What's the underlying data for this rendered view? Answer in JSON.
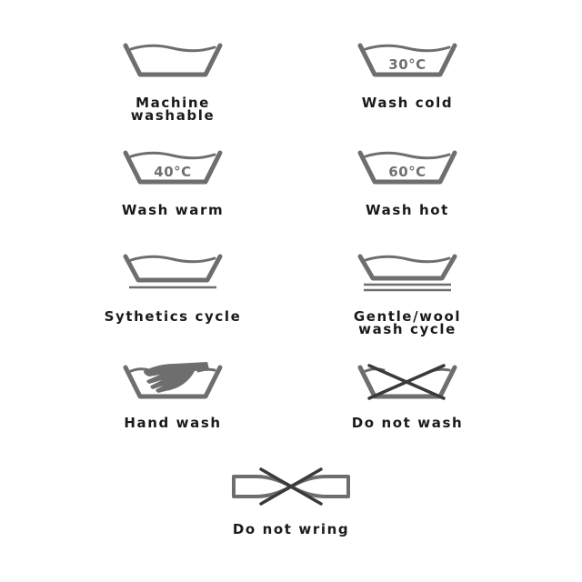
{
  "symbols": [
    {
      "id": "machine-washable",
      "label": "Machine\nwashable"
    },
    {
      "id": "wash-cold",
      "label": "Wash cold",
      "temperature": "30°C"
    },
    {
      "id": "wash-warm",
      "label": "Wash warm",
      "temperature": "40°C"
    },
    {
      "id": "wash-hot",
      "label": "Wash hot",
      "temperature": "60°C"
    },
    {
      "id": "synthetics-cycle",
      "label": "Sythetics cycle"
    },
    {
      "id": "gentle-wool",
      "label": "Gentle/wool\nwash cycle"
    },
    {
      "id": "hand-wash",
      "label": "Hand wash"
    },
    {
      "id": "do-not-wash",
      "label": "Do not wash"
    },
    {
      "id": "do-not-wring",
      "label": "Do not wring"
    }
  ],
  "colors": {
    "icon": "#6e6e6e",
    "cross": "#3a3a3a",
    "text": "#1a1a1a",
    "background": "#ffffff"
  }
}
